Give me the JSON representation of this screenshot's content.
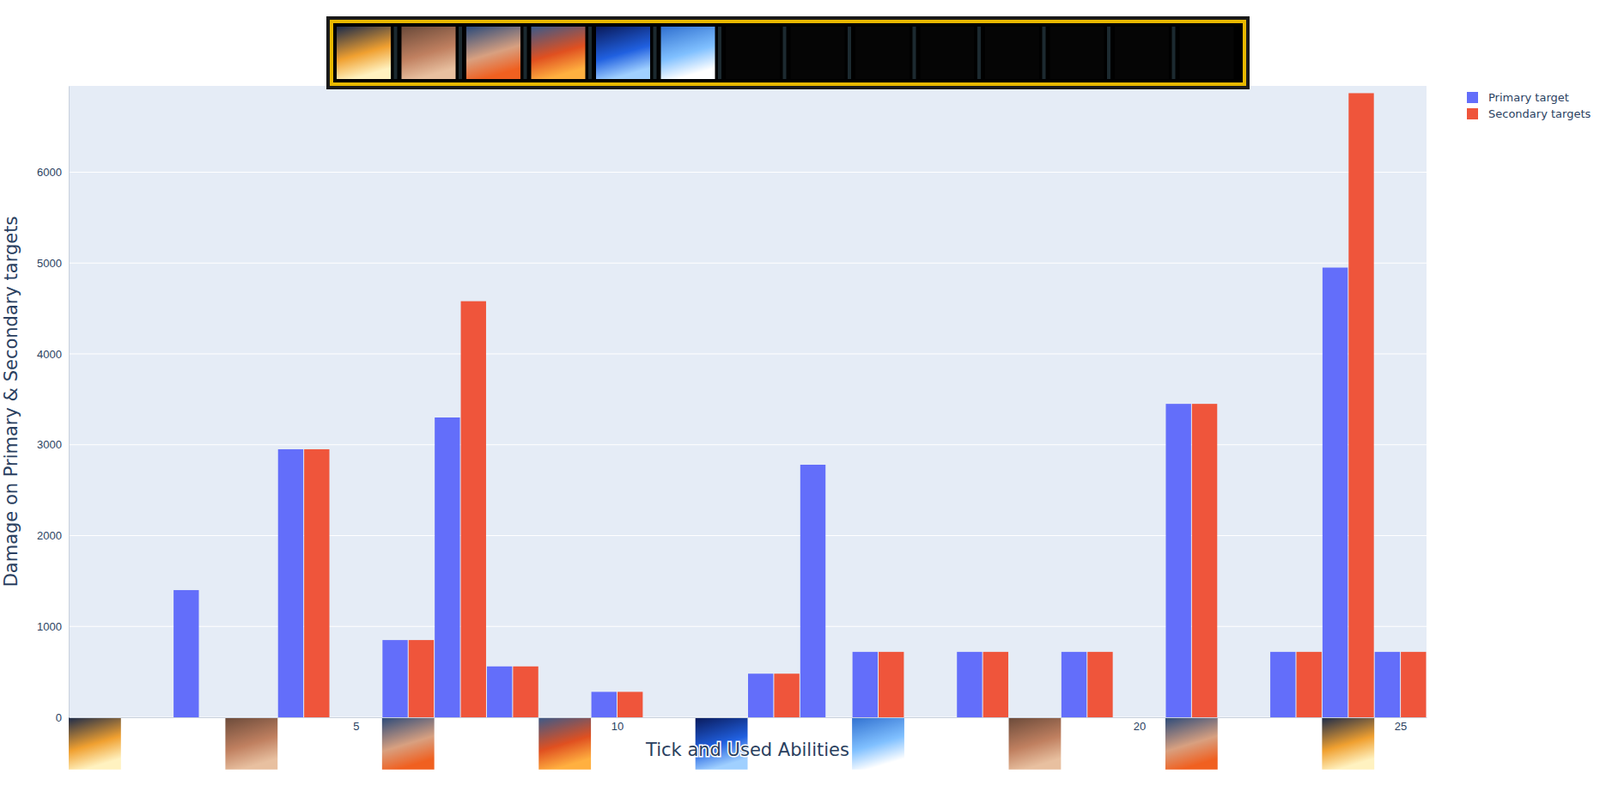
{
  "chart_data": {
    "type": "bar",
    "x_label": "Tick and Used Abilities",
    "y_label": "Damage on Primary & Secondary targets",
    "x": [
      2,
      4,
      6,
      7,
      8,
      10,
      13,
      14,
      15,
      17,
      19,
      21,
      23,
      24,
      25
    ],
    "series": [
      {
        "name": "Primary target",
        "color": "#636efa",
        "values": [
          1400,
          2950,
          850,
          3300,
          560,
          280,
          480,
          2780,
          720,
          720,
          720,
          3450,
          720,
          4950,
          720
        ]
      },
      {
        "name": "Secondary targets",
        "color": "#ef553b",
        "values": [
          0,
          2950,
          850,
          4580,
          560,
          280,
          480,
          0,
          720,
          720,
          720,
          3450,
          720,
          6870,
          720
        ]
      }
    ],
    "xlim": [
      -0.5,
      25.5
    ],
    "xticks": [
      5,
      10,
      20,
      25
    ],
    "ylim": [
      0,
      6950
    ],
    "yticks": [
      0,
      1000,
      2000,
      3000,
      4000,
      5000,
      6000
    ],
    "grid": true,
    "legend": "right"
  }
}
